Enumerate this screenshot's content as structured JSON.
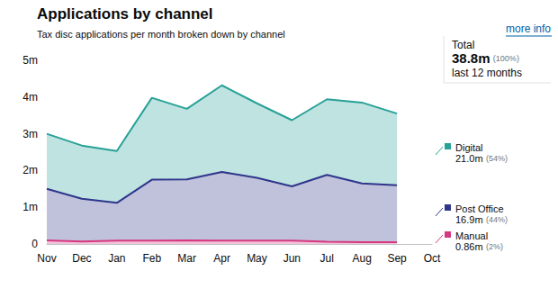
{
  "chart_data": {
    "type": "area",
    "title": "Applications by channel",
    "subtitle": "Tax disc applications per month broken down by channel",
    "link": "more info",
    "summary": {
      "label": "Total",
      "value": "38.8m",
      "share": "(100%)",
      "period": "last 12 months"
    },
    "categories": [
      "Nov",
      "Dec",
      "Jan",
      "Feb",
      "Mar",
      "Apr",
      "May",
      "Jun",
      "Jul",
      "Aug",
      "Sep",
      "Oct"
    ],
    "stacked": true,
    "grid": false,
    "ylim": [
      0,
      5
    ],
    "yticks": [
      0,
      {
        "value": 1,
        "label": "1m"
      },
      {
        "value": 2,
        "label": "2m"
      },
      {
        "value": 3,
        "label": "3m"
      },
      {
        "value": 4,
        "label": "4m"
      },
      {
        "value": 5,
        "label": "5m"
      }
    ],
    "series": [
      {
        "name": "Manual",
        "color": "#d53880",
        "total": "0.86m",
        "share": "(2%)",
        "values": [
          0.1,
          0.07,
          0.09,
          0.09,
          0.1,
          0.09,
          0.09,
          0.09,
          0.06,
          0.05,
          0.05,
          null
        ]
      },
      {
        "name": "Post Office",
        "color": "#2e358b",
        "total": "16.9m",
        "share": "(44%)",
        "values": [
          1.4,
          1.16,
          1.03,
          1.66,
          1.66,
          1.87,
          1.71,
          1.48,
          1.82,
          1.6,
          1.55,
          null
        ]
      },
      {
        "name": "Digital",
        "color": "#28a197",
        "total": "21.0m",
        "share": "(54%)",
        "values": [
          1.5,
          1.45,
          1.41,
          2.23,
          1.92,
          2.36,
          2.03,
          1.8,
          2.06,
          2.2,
          1.95,
          null
        ]
      }
    ]
  }
}
